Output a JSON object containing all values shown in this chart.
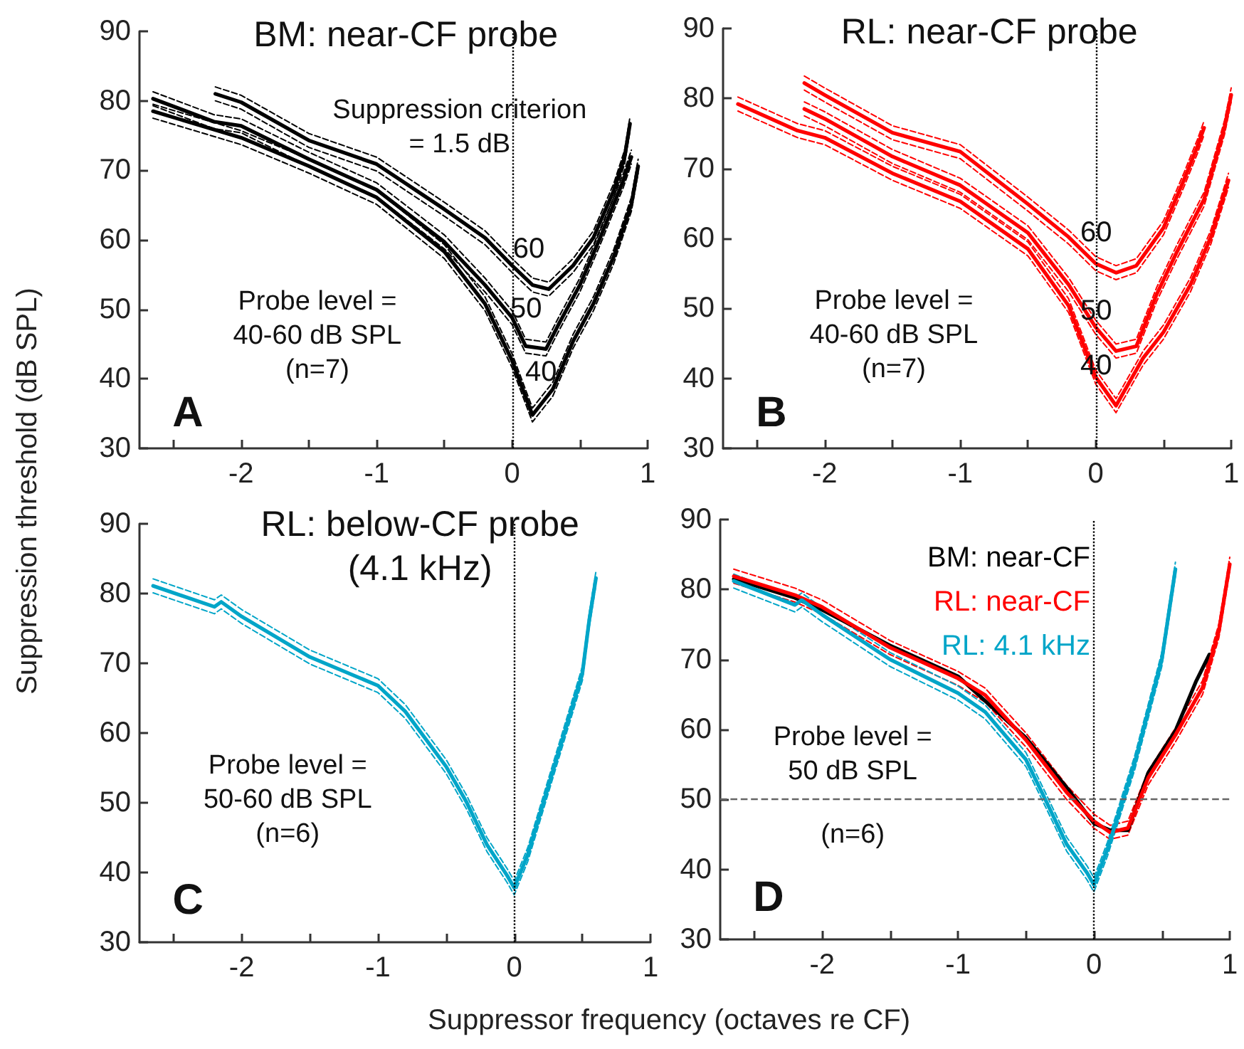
{
  "chart_data": [
    {
      "type": "line",
      "title": "BM: near-CF probe",
      "xlabel": "Suppressor frequency (octaves re CF)",
      "ylabel": "Suppression threshold (dB SPL)",
      "annotations": [
        "Suppression criterion\n= 1.5 dB",
        "Probe level =\n40-60 dB SPL\n(n=7)",
        "A"
      ],
      "xlim": [
        -2.75,
        1
      ],
      "xticks": [
        {
          "value": -2.5,
          "label": null
        },
        -2,
        {
          "value": -1.5,
          "label": null
        },
        -1,
        {
          "value": -0.5,
          "label": null
        },
        0,
        {
          "value": 0.5,
          "label": null
        },
        1
      ],
      "ylim": [
        30,
        90
      ],
      "yticks": [
        30,
        40,
        50,
        60,
        70,
        80,
        90
      ],
      "ref_lines": [
        {
          "axis": "x",
          "value": 0,
          "line_style": "dotted",
          "color": "#000000"
        }
      ],
      "series": [
        {
          "name": "60",
          "color": "#000000",
          "line_style": "solid",
          "x": [
            -2.19,
            -2,
            -1.5,
            -1,
            -0.5,
            -0.2,
            0,
            0.15,
            0.27,
            0.45,
            0.6,
            0.75,
            0.83,
            0.87
          ],
          "values": [
            81,
            79.8,
            74.3,
            70.9,
            64.4,
            60.3,
            56.3,
            53.5,
            52.9,
            56.3,
            60.3,
            67.1,
            71.9,
            76.7
          ]
        },
        {
          "color": "#000000",
          "line_style": "dashed",
          "x": [
            -2.19,
            -2,
            -1.5,
            -1,
            -0.5,
            -0.2,
            0,
            0.15,
            0.27,
            0.45,
            0.6,
            0.75,
            0.83,
            0.87
          ],
          "values": [
            80,
            78.8,
            73.3,
            69.9,
            63.4,
            59.3,
            55.3,
            52.5,
            51.9,
            55.3,
            59.3,
            66.1,
            70.9,
            75.7
          ]
        },
        {
          "color": "#000000",
          "line_style": "dashed",
          "x": [
            -2.19,
            -2,
            -1.5,
            -1,
            -0.5,
            -0.2,
            0,
            0.15,
            0.27,
            0.45,
            0.6,
            0.75,
            0.83,
            0.87
          ],
          "values": [
            82,
            80.8,
            75.3,
            71.9,
            65.4,
            61.3,
            57.3,
            54.5,
            53.9,
            57.3,
            61.3,
            68.1,
            72.9,
            77.7
          ]
        },
        {
          "name": "50",
          "color": "#000000",
          "line_style": "solid",
          "x": [
            -2.65,
            -2.2,
            -2,
            -1.5,
            -1,
            -0.5,
            -0.2,
            0,
            0.1,
            0.25,
            0.35,
            0.5,
            0.65,
            0.82,
            0.88
          ],
          "values": [
            80.3,
            77,
            76.4,
            71.6,
            67.2,
            59.7,
            53.5,
            48.8,
            44.7,
            44.3,
            48.1,
            53.5,
            60.3,
            68.5,
            71.9
          ]
        },
        {
          "color": "#000000",
          "line_style": "dashed",
          "x": [
            -2.65,
            -2.2,
            -2,
            -1.5,
            -1,
            -0.5,
            -0.2,
            0,
            0.1,
            0.25,
            0.35,
            0.5,
            0.65,
            0.82,
            0.88
          ],
          "values": [
            79.3,
            76,
            75.4,
            70.6,
            66.2,
            58.7,
            52.5,
            47.8,
            43.7,
            43.3,
            47.1,
            52.5,
            59.3,
            67.5,
            70.9
          ]
        },
        {
          "color": "#000000",
          "line_style": "dashed",
          "x": [
            -2.65,
            -2.2,
            -2,
            -1.5,
            -1,
            -0.5,
            -0.2,
            0,
            0.1,
            0.25,
            0.35,
            0.5,
            0.65,
            0.82,
            0.88
          ],
          "values": [
            81.3,
            78,
            77.4,
            72.6,
            68.2,
            60.7,
            54.5,
            49.8,
            45.7,
            45.3,
            49.1,
            54.5,
            61.3,
            69.5,
            72.9
          ]
        },
        {
          "name": "40",
          "color": "#000000",
          "line_style": "solid",
          "x": [
            -2.65,
            -2,
            -1.5,
            -1,
            -0.5,
            -0.2,
            0,
            0.15,
            0.3,
            0.45,
            0.6,
            0.75,
            0.88,
            0.93
          ],
          "values": [
            78.5,
            74.7,
            70.6,
            66.1,
            58.3,
            50.8,
            42.6,
            34.8,
            38.5,
            45.4,
            50.8,
            57.6,
            65.1,
            70.6
          ]
        },
        {
          "color": "#000000",
          "line_style": "dashed",
          "x": [
            -2.65,
            -2,
            -1.5,
            -1,
            -0.5,
            -0.2,
            0,
            0.15,
            0.3,
            0.45,
            0.6,
            0.75,
            0.88,
            0.93
          ],
          "values": [
            77.5,
            73.7,
            69.6,
            65.1,
            57.3,
            49.8,
            41.6,
            33.8,
            37.5,
            44.4,
            49.8,
            56.6,
            64.1,
            69.6
          ]
        },
        {
          "color": "#000000",
          "line_style": "dashed",
          "x": [
            -2.65,
            -2,
            -1.5,
            -1,
            -0.5,
            -0.2,
            0,
            0.15,
            0.3,
            0.45,
            0.6,
            0.75,
            0.88,
            0.93
          ],
          "values": [
            79.5,
            75.7,
            71.6,
            67.1,
            59.3,
            51.8,
            43.6,
            35.8,
            39.5,
            46.4,
            51.8,
            58.6,
            66.1,
            71.6
          ]
        }
      ]
    },
    {
      "type": "line",
      "title": "RL: near-CF probe",
      "annotations": [
        "Probe level =\n40-60 dB SPL\n(n=7)",
        "B"
      ],
      "xlim": [
        -2.75,
        1
      ],
      "xticks": [
        {
          "value": -2.5,
          "label": null
        },
        -2,
        {
          "value": -1.5,
          "label": null
        },
        -1,
        {
          "value": -0.5,
          "label": null
        },
        0,
        {
          "value": 0.5,
          "label": null
        },
        1
      ],
      "ylim": [
        30,
        90
      ],
      "yticks": [
        30,
        40,
        50,
        60,
        70,
        80,
        90
      ],
      "ref_lines": [
        {
          "axis": "x",
          "value": 0,
          "line_style": "dotted",
          "color": "#000000"
        }
      ],
      "series": [
        {
          "name": "60",
          "color": "#ff0000",
          "line_style": "solid",
          "x": [
            -2.15,
            -2,
            -1.5,
            -1,
            -0.5,
            -0.2,
            0,
            0.15,
            0.3,
            0.5,
            0.65,
            0.75,
            0.8
          ],
          "values": [
            82.2,
            80.5,
            75.1,
            72.4,
            64.9,
            60.2,
            56.4,
            55.1,
            56.1,
            61.5,
            68.3,
            73.1,
            75.8
          ]
        },
        {
          "color": "#ff0000",
          "line_style": "dashed",
          "x": [
            -2.15,
            -2,
            -1.5,
            -1,
            -0.5,
            -0.2,
            0,
            0.15,
            0.3,
            0.5,
            0.65,
            0.75,
            0.8
          ],
          "values": [
            81.2,
            79.5,
            74.1,
            71.4,
            63.9,
            59.2,
            55.4,
            54.1,
            55.1,
            60.5,
            67.3,
            72.1,
            74.8
          ]
        },
        {
          "color": "#ff0000",
          "line_style": "dashed",
          "x": [
            -2.15,
            -2,
            -1.5,
            -1,
            -0.5,
            -0.2,
            0,
            0.15,
            0.3,
            0.5,
            0.65,
            0.75,
            0.8
          ],
          "values": [
            83.2,
            81.5,
            76.1,
            73.4,
            65.9,
            61.2,
            57.4,
            56.1,
            57.1,
            62.5,
            69.3,
            74.1,
            76.8
          ]
        },
        {
          "name": "50",
          "color": "#ff0000",
          "line_style": "solid",
          "x": [
            -2.15,
            -2,
            -1.5,
            -1,
            -0.5,
            -0.2,
            0,
            0.15,
            0.3,
            0.45,
            0.6,
            0.8,
            0.95,
            1
          ],
          "values": [
            78.5,
            77.1,
            71.7,
            67.6,
            60.8,
            53.4,
            47.3,
            43.9,
            44.6,
            52,
            58.1,
            65.6,
            75.8,
            80.5
          ]
        },
        {
          "color": "#ff0000",
          "line_style": "dashed",
          "x": [
            -2.15,
            -2,
            -1.5,
            -1,
            -0.5,
            -0.2,
            0,
            0.15,
            0.3,
            0.45,
            0.6,
            0.8,
            0.95,
            1
          ],
          "values": [
            77.5,
            76.1,
            70.7,
            66.6,
            59.8,
            52.4,
            46.3,
            42.9,
            43.6,
            51,
            57.1,
            64.6,
            74.8,
            79.5
          ]
        },
        {
          "color": "#ff0000",
          "line_style": "dashed",
          "x": [
            -2.15,
            -2,
            -1.5,
            -1,
            -0.5,
            -0.2,
            0,
            0.15,
            0.3,
            0.45,
            0.6,
            0.8,
            0.95,
            1
          ],
          "values": [
            79.5,
            78.1,
            72.7,
            68.6,
            61.8,
            54.4,
            48.3,
            44.9,
            45.6,
            53,
            59.1,
            66.6,
            76.8,
            81.5
          ]
        },
        {
          "name": "40",
          "color": "#ff0000",
          "line_style": "solid",
          "x": [
            -2.64,
            -2.2,
            -2,
            -1.5,
            -1,
            -0.5,
            -0.2,
            0,
            0.15,
            0.35,
            0.5,
            0.7,
            0.85,
            0.98
          ],
          "values": [
            79.2,
            75.4,
            74.4,
            69.3,
            65.3,
            58.5,
            50.4,
            40.2,
            36.1,
            42.9,
            46.6,
            53.4,
            60.2,
            68.3
          ]
        },
        {
          "color": "#ff0000",
          "line_style": "dashed",
          "x": [
            -2.64,
            -2.2,
            -2,
            -1.5,
            -1,
            -0.5,
            -0.2,
            0,
            0.15,
            0.35,
            0.5,
            0.7,
            0.85,
            0.98
          ],
          "values": [
            78.2,
            74.4,
            73.4,
            68.3,
            64.3,
            57.5,
            49.4,
            39.2,
            35.1,
            41.9,
            45.6,
            52.4,
            59.2,
            67.3
          ]
        },
        {
          "color": "#ff0000",
          "line_style": "dashed",
          "x": [
            -2.64,
            -2.2,
            -2,
            -1.5,
            -1,
            -0.5,
            -0.2,
            0,
            0.15,
            0.35,
            0.5,
            0.7,
            0.85,
            0.98
          ],
          "values": [
            80.2,
            76.4,
            75.4,
            70.3,
            66.3,
            59.5,
            51.4,
            41.2,
            37.1,
            43.9,
            47.6,
            54.4,
            61.2,
            69.3
          ]
        }
      ]
    },
    {
      "type": "line",
      "title": "RL: below-CF probe\n(4.1 kHz)",
      "annotations": [
        "Probe level =\n50-60 dB SPL\n(n=6)",
        "C"
      ],
      "xlim": [
        -2.75,
        1
      ],
      "xticks": [
        {
          "value": -2.5,
          "label": null
        },
        -2,
        {
          "value": -1.5,
          "label": null
        },
        -1,
        {
          "value": -0.5,
          "label": null
        },
        0,
        {
          "value": 0.5,
          "label": null
        },
        1
      ],
      "ylim": [
        30,
        90
      ],
      "yticks": [
        30,
        40,
        50,
        60,
        70,
        80,
        90
      ],
      "ref_lines": [
        {
          "axis": "x",
          "value": 0,
          "line_style": "dotted",
          "color": "#000000"
        }
      ],
      "series": [
        {
          "color": "#00a5c8",
          "line_style": "solid",
          "x": [
            -2.65,
            -2.2,
            -2.15,
            -2,
            -1.5,
            -1,
            -0.8,
            -0.5,
            -0.35,
            -0.2,
            -0.05,
            0,
            0.1,
            0.3,
            0.5,
            0.55,
            0.6
          ],
          "values": [
            81.1,
            78.1,
            78.8,
            76.7,
            70.9,
            66.8,
            63.1,
            55.2,
            50.1,
            44,
            39.5,
            37.8,
            42.6,
            55.6,
            68.5,
            76.1,
            82.2
          ]
        },
        {
          "color": "#00a5c8",
          "line_style": "dashed",
          "x": [
            -2.65,
            -2.2,
            -2.15,
            -2,
            -1.5,
            -1,
            -0.8,
            -0.5,
            -0.35,
            -0.2,
            -0.05,
            0,
            0.1,
            0.3,
            0.5,
            0.55,
            0.6
          ],
          "values": [
            80.1,
            77.1,
            77.8,
            75.7,
            69.9,
            65.8,
            62.1,
            54.2,
            49.1,
            43,
            38.5,
            36.8,
            41.6,
            54.6,
            67.5,
            75.1,
            81.2
          ]
        },
        {
          "color": "#00a5c8",
          "line_style": "dashed",
          "x": [
            -2.65,
            -2.2,
            -2.15,
            -2,
            -1.5,
            -1,
            -0.8,
            -0.5,
            -0.35,
            -0.2,
            -0.05,
            0,
            0.1,
            0.3,
            0.5,
            0.55,
            0.6
          ],
          "values": [
            82.1,
            79.1,
            79.8,
            77.7,
            71.9,
            67.8,
            64.1,
            56.2,
            51.1,
            45,
            40.5,
            38.8,
            43.6,
            56.6,
            69.5,
            77.1,
            83.2
          ]
        }
      ]
    },
    {
      "type": "line",
      "annotations": [
        "Probe level =\n50 dB SPL",
        "(n=6)",
        "D"
      ],
      "legend": "top right",
      "xlim": [
        -2.75,
        1
      ],
      "xticks": [
        {
          "value": -2.5,
          "label": null
        },
        -2,
        {
          "value": -1.5,
          "label": null
        },
        -1,
        {
          "value": -0.5,
          "label": null
        },
        0,
        {
          "value": 0.5,
          "label": null
        },
        1
      ],
      "ylim": [
        30,
        90
      ],
      "yticks": [
        30,
        40,
        50,
        60,
        70,
        80,
        90
      ],
      "ref_lines": [
        {
          "axis": "x",
          "value": 0,
          "line_style": "dotted",
          "color": "#000000"
        },
        {
          "axis": "y",
          "value": 50,
          "line_style": "dashed",
          "color": "#666666"
        }
      ],
      "series": [
        {
          "name": "BM: near-CF",
          "color": "#000000",
          "line_style": "solid",
          "x": [
            -2.65,
            -2.2,
            -2,
            -1.5,
            -1,
            -0.5,
            -0.2,
            0,
            0.12,
            0.25,
            0.4,
            0.6,
            0.75,
            0.85
          ],
          "values": [
            81.5,
            78.8,
            77.1,
            72,
            67.6,
            58.8,
            51.7,
            46.6,
            45.6,
            45.6,
            53.8,
            59.8,
            66.8,
            70.7
          ]
        },
        {
          "name": "RL: near-CF",
          "color": "#ff0000",
          "line_style": "solid",
          "x": [
            -2.65,
            -2.2,
            -2,
            -1.5,
            -1,
            -0.8,
            -0.5,
            -0.2,
            0,
            0.12,
            0.25,
            0.4,
            0.6,
            0.8,
            0.92,
            1
          ],
          "values": [
            81.9,
            79.2,
            77.5,
            71.7,
            67.3,
            64.9,
            58.5,
            51,
            46.9,
            45.3,
            45.9,
            53.1,
            59.2,
            66,
            74.1,
            83.6
          ]
        },
        {
          "color": "#ff0000",
          "line_style": "dashed",
          "x": [
            -2.65,
            -2.2,
            -2,
            -1.5,
            -1,
            -0.8,
            -0.5,
            -0.2,
            0,
            0.12,
            0.25,
            0.4,
            0.6,
            0.8,
            0.92,
            1
          ],
          "values": [
            80.9,
            78.2,
            76.5,
            70.7,
            66.3,
            63.9,
            57.5,
            50,
            45.9,
            44.3,
            44.9,
            52.1,
            58.2,
            65,
            73.1,
            82.6
          ]
        },
        {
          "color": "#ff0000",
          "line_style": "dashed",
          "x": [
            -2.65,
            -2.2,
            -2,
            -1.5,
            -1,
            -0.8,
            -0.5,
            -0.2,
            0,
            0.12,
            0.25,
            0.4,
            0.6,
            0.8,
            0.92,
            1
          ],
          "values": [
            82.9,
            80.2,
            78.5,
            72.7,
            68.3,
            65.9,
            59.5,
            52,
            47.9,
            46.3,
            46.9,
            54.1,
            60.2,
            67,
            75.1,
            84.6
          ]
        },
        {
          "name": "RL: 4.1 kHz",
          "color": "#00a5c8",
          "line_style": "solid",
          "x": [
            -2.65,
            -2.2,
            -2.15,
            -2,
            -1.5,
            -1,
            -0.8,
            -0.5,
            -0.35,
            -0.2,
            -0.05,
            0,
            0.1,
            0.3,
            0.5,
            0.6
          ],
          "values": [
            81.2,
            77.8,
            78.5,
            76.4,
            70,
            65.2,
            62.5,
            55.7,
            49.7,
            43.6,
            39.5,
            37.8,
            42.9,
            55.2,
            70,
            82.9
          ]
        },
        {
          "color": "#00a5c8",
          "line_style": "dashed",
          "x": [
            -2.65,
            -2.2,
            -2.15,
            -2,
            -1.5,
            -1,
            -0.8,
            -0.5,
            -0.35,
            -0.2,
            -0.05,
            0,
            0.1,
            0.3,
            0.5,
            0.6
          ],
          "values": [
            80.2,
            76.8,
            77.5,
            75.4,
            69,
            64.2,
            61.5,
            54.7,
            48.7,
            42.6,
            38.5,
            36.8,
            41.9,
            54.2,
            69,
            81.9
          ]
        },
        {
          "color": "#00a5c8",
          "line_style": "dashed",
          "x": [
            -2.65,
            -2.2,
            -2.15,
            -2,
            -1.5,
            -1,
            -0.8,
            -0.5,
            -0.35,
            -0.2,
            -0.05,
            0,
            0.1,
            0.3,
            0.5,
            0.6
          ],
          "values": [
            82.2,
            78.8,
            79.5,
            77.4,
            71,
            66.2,
            63.5,
            56.7,
            50.7,
            44.6,
            40.5,
            38.8,
            43.9,
            56.2,
            71,
            83.9
          ]
        }
      ]
    }
  ]
}
